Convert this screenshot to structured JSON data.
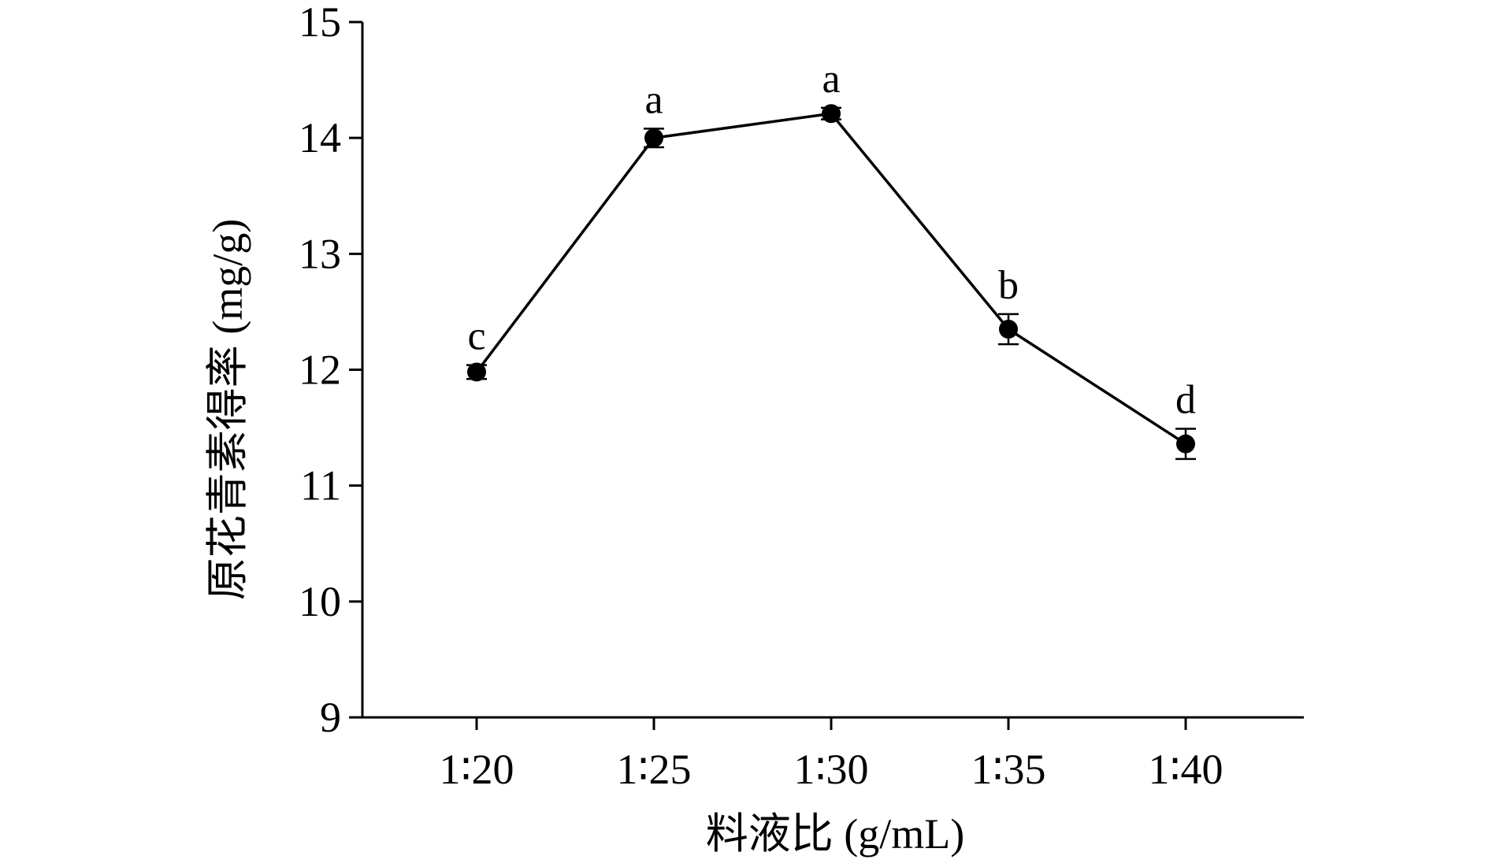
{
  "chart_data": {
    "type": "line",
    "title": "",
    "xlabel": "料液比 (g/mL)",
    "ylabel": "原花青素得率 (mg/g)",
    "categories": [
      "1∶20",
      "1∶25",
      "1∶30",
      "1∶35",
      "1∶40"
    ],
    "series": [
      {
        "values": [
          11.98,
          14.0,
          14.21,
          12.35,
          11.36
        ],
        "error": [
          0.06,
          0.08,
          0.05,
          0.13,
          0.13
        ],
        "labels": [
          "c",
          "a",
          "a",
          "b",
          "d"
        ],
        "color": "#000000"
      }
    ],
    "ylim": [
      9,
      15
    ],
    "yticks": [
      "9",
      "10",
      "11",
      "12",
      "13",
      "14",
      "15"
    ],
    "grid": false,
    "legend": "none"
  }
}
